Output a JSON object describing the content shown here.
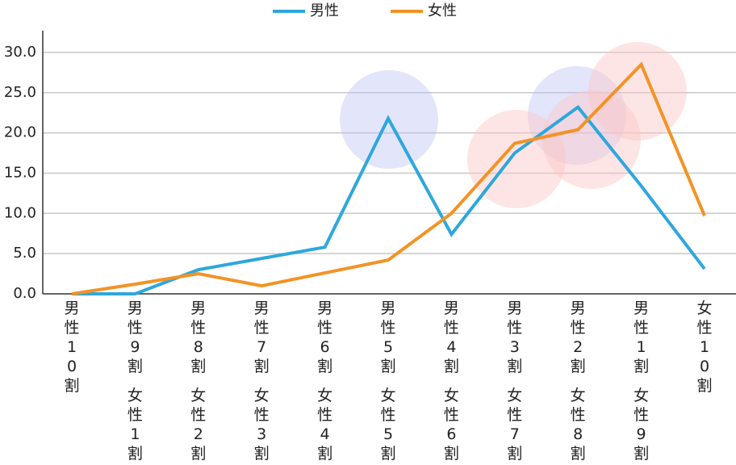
{
  "chart_data": {
    "type": "line",
    "categories": [
      [
        "男性10割"
      ],
      [
        "男性9割",
        "女性1割"
      ],
      [
        "男性8割",
        "女性2割"
      ],
      [
        "男性7割",
        "女性3割"
      ],
      [
        "男性6割",
        "女性4割"
      ],
      [
        "男性5割",
        "女性5割"
      ],
      [
        "男性4割",
        "女性6割"
      ],
      [
        "男性3割",
        "女性7割"
      ],
      [
        "男性2割",
        "女性8割"
      ],
      [
        "男性1割",
        "女性9割"
      ],
      [
        "女性10割"
      ]
    ],
    "series": [
      {
        "name": "男性",
        "color": "#2ea7dd",
        "values": [
          0,
          0,
          3.0,
          4.4,
          5.8,
          21.8,
          7.4,
          17.5,
          23.2,
          13.4,
          3.1
        ]
      },
      {
        "name": "女性",
        "color": "#f39325",
        "values": [
          0,
          1.2,
          2.5,
          1.0,
          2.6,
          4.2,
          10.0,
          18.7,
          20.4,
          28.5,
          9.7
        ]
      }
    ],
    "ylim": [
      0,
      32.7
    ],
    "yticks": [
      {
        "value": 0,
        "label": "0.0"
      },
      {
        "value": 5,
        "label": "5.0"
      },
      {
        "value": 10,
        "label": "10.0"
      },
      {
        "value": 15,
        "label": "15.0"
      },
      {
        "value": 20,
        "label": "20.0"
      },
      {
        "value": 25,
        "label": "25.0"
      },
      {
        "value": 30,
        "label": "30.0"
      }
    ],
    "grid": true,
    "legend": "top"
  }
}
